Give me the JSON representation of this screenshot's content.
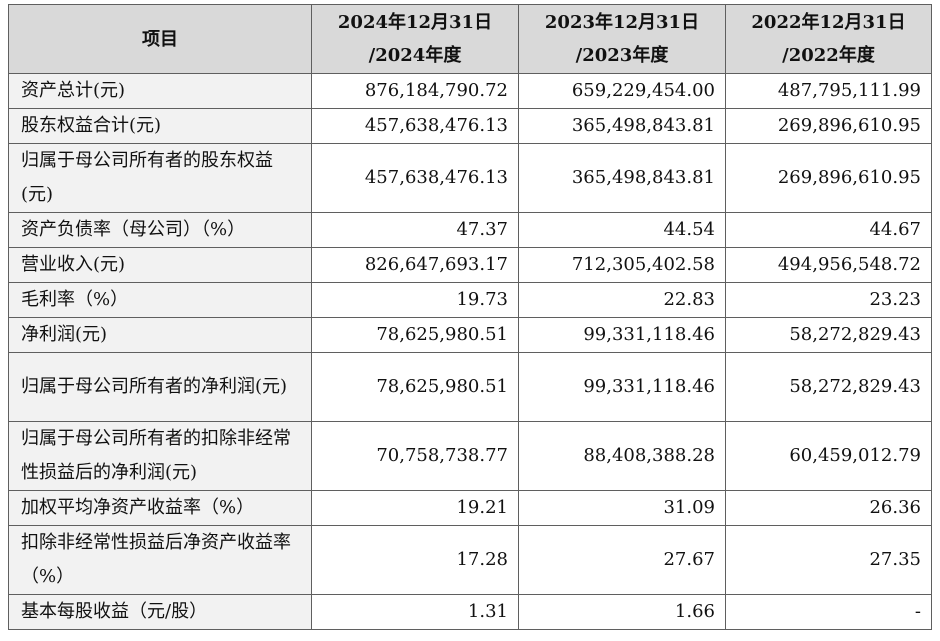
{
  "table": {
    "headers": [
      {
        "line1": "项目",
        "line2": ""
      },
      {
        "line1": "2024年12月31日",
        "line2": "/2024年度"
      },
      {
        "line1": "2023年12月31日",
        "line2": "/2023年度"
      },
      {
        "line1": "2022年12月31日",
        "line2": "/2022年度"
      }
    ],
    "rows": [
      {
        "label": "资产总计(元)",
        "v2024": "876,184,790.72",
        "v2023": "659,229,454.00",
        "v2022": "487,795,111.99"
      },
      {
        "label": "股东权益合计(元)",
        "v2024": "457,638,476.13",
        "v2023": "365,498,843.81",
        "v2022": "269,896,610.95"
      },
      {
        "label": "归属于母公司所有者的股东权益(元)",
        "v2024": "457,638,476.13",
        "v2023": "365,498,843.81",
        "v2022": "269,896,610.95"
      },
      {
        "label": "资产负债率（母公司）（%）",
        "v2024": "47.37",
        "v2023": "44.54",
        "v2022": "44.67"
      },
      {
        "label": "营业收入(元)",
        "v2024": "826,647,693.17",
        "v2023": "712,305,402.58",
        "v2022": "494,956,548.72"
      },
      {
        "label": "毛利率（%）",
        "v2024": "19.73",
        "v2023": "22.83",
        "v2022": "23.23"
      },
      {
        "label": "净利润(元)",
        "v2024": "78,625,980.51",
        "v2023": "99,331,118.46",
        "v2022": "58,272,829.43"
      },
      {
        "label": "归属于母公司所有者的净利润(元)",
        "v2024": "78,625,980.51",
        "v2023": "99,331,118.46",
        "v2022": "58,272,829.43"
      },
      {
        "label": "归属于母公司所有者的扣除非经常性损益后的净利润(元)",
        "v2024": "70,758,738.77",
        "v2023": "88,408,388.28",
        "v2022": "60,459,012.79"
      },
      {
        "label": "加权平均净资产收益率（%）",
        "v2024": "19.21",
        "v2023": "31.09",
        "v2022": "26.36"
      },
      {
        "label": "扣除非经常性损益后净资产收益率（%）",
        "v2024": "17.28",
        "v2023": "27.67",
        "v2022": "27.35"
      },
      {
        "label": "基本每股收益（元/股）",
        "v2024": "1.31",
        "v2023": "1.66",
        "v2022": "-"
      }
    ]
  }
}
